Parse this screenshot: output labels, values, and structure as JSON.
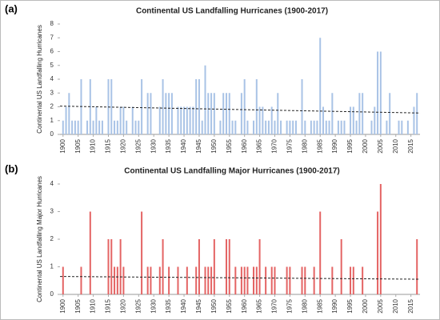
{
  "chart_data": [
    {
      "type": "bar",
      "panel_label": "(a)",
      "title": "Continental US Landfalling Hurricanes (1900-2017)",
      "ylabel": "Continental US Landfalling Hurricanes",
      "color": "#a9c3e6",
      "x": [
        1900,
        1901,
        1902,
        1903,
        1904,
        1905,
        1906,
        1907,
        1908,
        1909,
        1910,
        1911,
        1912,
        1913,
        1914,
        1915,
        1916,
        1917,
        1918,
        1919,
        1920,
        1921,
        1922,
        1923,
        1924,
        1925,
        1926,
        1927,
        1928,
        1929,
        1930,
        1931,
        1932,
        1933,
        1934,
        1935,
        1936,
        1937,
        1938,
        1939,
        1940,
        1941,
        1942,
        1943,
        1944,
        1945,
        1946,
        1947,
        1948,
        1949,
        1950,
        1951,
        1952,
        1953,
        1954,
        1955,
        1956,
        1957,
        1958,
        1959,
        1960,
        1961,
        1962,
        1963,
        1964,
        1965,
        1966,
        1967,
        1968,
        1969,
        1970,
        1971,
        1972,
        1973,
        1974,
        1975,
        1976,
        1977,
        1978,
        1979,
        1980,
        1981,
        1982,
        1983,
        1984,
        1985,
        1986,
        1987,
        1988,
        1989,
        1990,
        1991,
        1992,
        1993,
        1994,
        1995,
        1996,
        1997,
        1998,
        1999,
        2000,
        2001,
        2002,
        2003,
        2004,
        2005,
        2006,
        2007,
        2008,
        2009,
        2010,
        2011,
        2012,
        2013,
        2014,
        2015,
        2016,
        2017
      ],
      "values": [
        1,
        2,
        3,
        1,
        1,
        1,
        4,
        0,
        1,
        4,
        1,
        2,
        1,
        1,
        0,
        4,
        4,
        1,
        1,
        2,
        2,
        1,
        0,
        2,
        1,
        1,
        4,
        0,
        3,
        3,
        0,
        0,
        2,
        4,
        3,
        3,
        3,
        0,
        2,
        2,
        2,
        2,
        2,
        2,
        4,
        4,
        1,
        5,
        3,
        3,
        3,
        0,
        1,
        3,
        3,
        3,
        1,
        1,
        0,
        3,
        4,
        1,
        0,
        1,
        4,
        2,
        2,
        1,
        1,
        2,
        1,
        3,
        1,
        0,
        1,
        1,
        1,
        1,
        0,
        4,
        1,
        0,
        1,
        1,
        1,
        7,
        2,
        1,
        1,
        3,
        0,
        1,
        1,
        1,
        0,
        2,
        2,
        1,
        3,
        3,
        0,
        0,
        1,
        2,
        6,
        6,
        0,
        1,
        3,
        0,
        0,
        1,
        1,
        0,
        1,
        0,
        2,
        3
      ],
      "trend_line": [
        2.05,
        1.55
      ],
      "xlim": [
        1899,
        2018
      ],
      "xticks": [
        1900,
        1905,
        1910,
        1915,
        1920,
        1925,
        1930,
        1935,
        1940,
        1945,
        1950,
        1955,
        1960,
        1965,
        1970,
        1975,
        1980,
        1985,
        1990,
        1995,
        2000,
        2005,
        2010,
        2015
      ],
      "ylim": [
        0,
        8
      ],
      "yticks": [
        0,
        1,
        2,
        3,
        4,
        5,
        6,
        7,
        8
      ]
    },
    {
      "type": "bar",
      "panel_label": "(b)",
      "title": "Continental US Landfalling Major Hurricanes (1900-2017)",
      "ylabel": "Continental US Landfalling Major Hurricanes",
      "color": "#e46464",
      "x": [
        1900,
        1901,
        1902,
        1903,
        1904,
        1905,
        1906,
        1907,
        1908,
        1909,
        1910,
        1911,
        1912,
        1913,
        1914,
        1915,
        1916,
        1917,
        1918,
        1919,
        1920,
        1921,
        1922,
        1923,
        1924,
        1925,
        1926,
        1927,
        1928,
        1929,
        1930,
        1931,
        1932,
        1933,
        1934,
        1935,
        1936,
        1937,
        1938,
        1939,
        1940,
        1941,
        1942,
        1943,
        1944,
        1945,
        1946,
        1947,
        1948,
        1949,
        1950,
        1951,
        1952,
        1953,
        1954,
        1955,
        1956,
        1957,
        1958,
        1959,
        1960,
        1961,
        1962,
        1963,
        1964,
        1965,
        1966,
        1967,
        1968,
        1969,
        1970,
        1971,
        1972,
        1973,
        1974,
        1975,
        1976,
        1977,
        1978,
        1979,
        1980,
        1981,
        1982,
        1983,
        1984,
        1985,
        1986,
        1987,
        1988,
        1989,
        1990,
        1991,
        1992,
        1993,
        1994,
        1995,
        1996,
        1997,
        1998,
        1999,
        2000,
        2001,
        2002,
        2003,
        2004,
        2005,
        2006,
        2007,
        2008,
        2009,
        2010,
        2011,
        2012,
        2013,
        2014,
        2015,
        2016,
        2017
      ],
      "values": [
        1,
        0,
        0,
        0,
        0,
        0,
        1,
        0,
        0,
        3,
        0,
        0,
        0,
        0,
        0,
        2,
        2,
        1,
        1,
        2,
        1,
        0,
        0,
        0,
        0,
        0,
        3,
        0,
        1,
        1,
        0,
        0,
        1,
        2,
        0,
        1,
        0,
        0,
        1,
        0,
        0,
        1,
        0,
        0,
        1,
        2,
        0,
        1,
        1,
        1,
        2,
        0,
        0,
        0,
        2,
        2,
        0,
        1,
        0,
        1,
        1,
        1,
        0,
        1,
        1,
        2,
        0,
        1,
        0,
        1,
        1,
        0,
        0,
        0,
        1,
        1,
        0,
        0,
        0,
        1,
        1,
        0,
        0,
        1,
        0,
        3,
        0,
        0,
        0,
        1,
        0,
        0,
        2,
        0,
        0,
        1,
        1,
        0,
        0,
        1,
        0,
        0,
        0,
        0,
        3,
        4,
        0,
        0,
        0,
        0,
        0,
        0,
        0,
        0,
        0,
        0,
        0,
        2
      ],
      "trend_line": [
        0.65,
        0.55
      ],
      "xlim": [
        1899,
        2018
      ],
      "xticks": [
        1900,
        1905,
        1910,
        1915,
        1920,
        1925,
        1930,
        1935,
        1940,
        1945,
        1950,
        1955,
        1960,
        1965,
        1970,
        1975,
        1980,
        1985,
        1990,
        1995,
        2000,
        2005,
        2010,
        2015
      ],
      "ylim": [
        0,
        4
      ],
      "yticks": [
        0,
        1,
        2,
        3,
        4
      ]
    }
  ]
}
